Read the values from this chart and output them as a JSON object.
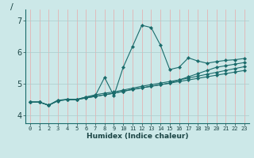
{
  "title": "/",
  "xlabel": "Humidex (Indice chaleur)",
  "bg_color": "#cce8e8",
  "line_color": "#1a6b6b",
  "grid_color_v": "#e8aaaa",
  "grid_color_h": "#aacccc",
  "xlim": [
    -0.5,
    23.5
  ],
  "ylim": [
    3.75,
    7.35
  ],
  "yticks": [
    4,
    5,
    6,
    7
  ],
  "xticks": [
    0,
    1,
    2,
    3,
    4,
    5,
    6,
    7,
    8,
    9,
    10,
    11,
    12,
    13,
    14,
    15,
    16,
    17,
    18,
    19,
    20,
    21,
    22,
    23
  ],
  "series": [
    {
      "x": [
        0,
        1,
        2,
        3,
        4,
        5,
        6,
        7,
        8,
        9,
        10,
        11,
        12,
        13,
        14,
        15,
        16,
        17,
        18,
        19,
        20,
        21,
        22,
        23
      ],
      "y": [
        4.42,
        4.42,
        4.32,
        4.48,
        4.5,
        4.5,
        4.58,
        4.62,
        5.2,
        4.62,
        5.52,
        6.18,
        6.85,
        6.78,
        6.22,
        5.45,
        5.52,
        5.82,
        5.72,
        5.65,
        5.7,
        5.74,
        5.76,
        5.8
      ]
    },
    {
      "x": [
        0,
        1,
        2,
        3,
        4,
        5,
        6,
        7,
        8,
        9,
        10,
        11,
        12,
        13,
        14,
        15,
        16,
        17,
        18,
        19,
        20,
        21,
        22,
        23
      ],
      "y": [
        4.42,
        4.42,
        4.32,
        4.48,
        4.5,
        4.5,
        4.58,
        4.65,
        4.7,
        4.74,
        4.8,
        4.86,
        4.92,
        4.97,
        5.02,
        5.07,
        5.12,
        5.18,
        5.24,
        5.3,
        5.36,
        5.42,
        5.48,
        5.54
      ]
    },
    {
      "x": [
        0,
        1,
        2,
        3,
        4,
        5,
        6,
        7,
        8,
        9,
        10,
        11,
        12,
        13,
        14,
        15,
        16,
        17,
        18,
        19,
        20,
        21,
        22,
        23
      ],
      "y": [
        4.42,
        4.42,
        4.32,
        4.46,
        4.5,
        4.5,
        4.55,
        4.6,
        4.65,
        4.7,
        4.76,
        4.82,
        4.87,
        4.92,
        4.97,
        5.02,
        5.12,
        5.22,
        5.32,
        5.42,
        5.52,
        5.57,
        5.62,
        5.67
      ]
    },
    {
      "x": [
        0,
        1,
        2,
        3,
        4,
        5,
        6,
        7,
        8,
        9,
        10,
        11,
        12,
        13,
        14,
        15,
        16,
        17,
        18,
        19,
        20,
        21,
        22,
        23
      ],
      "y": [
        4.42,
        4.42,
        4.32,
        4.46,
        4.5,
        4.5,
        4.55,
        4.6,
        4.65,
        4.7,
        4.76,
        4.82,
        4.87,
        4.92,
        4.97,
        5.02,
        5.07,
        5.12,
        5.17,
        5.22,
        5.27,
        5.32,
        5.37,
        5.42
      ]
    }
  ]
}
